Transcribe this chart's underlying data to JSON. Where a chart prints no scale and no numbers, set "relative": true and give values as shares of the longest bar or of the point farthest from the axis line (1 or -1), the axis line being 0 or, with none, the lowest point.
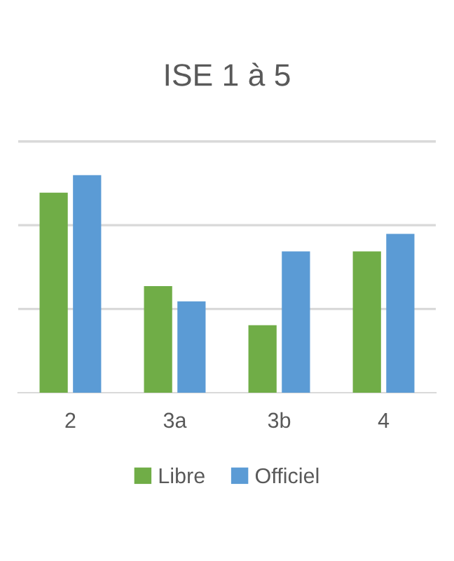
{
  "chart_data": {
    "type": "bar",
    "title": "ISE 1 à 5",
    "relative": true,
    "categories": [
      "2",
      "3a",
      "3b",
      "4"
    ],
    "series": [
      {
        "name": "Libre",
        "color": "#70ad47",
        "values": [
          0.92,
          0.49,
          0.31,
          0.65
        ]
      },
      {
        "name": "Officiel",
        "color": "#5b9bd5",
        "values": [
          1,
          0.42,
          0.65,
          0.73
        ]
      }
    ],
    "ref_lines": [
      {
        "axis": "y",
        "value": 0.385,
        "color": "#d9d9d9"
      },
      {
        "axis": "y",
        "value": 0.77,
        "color": "#d9d9d9"
      },
      {
        "axis": "y",
        "value": 1.155,
        "color": "#d9d9d9"
      }
    ],
    "legend": "bottom"
  }
}
